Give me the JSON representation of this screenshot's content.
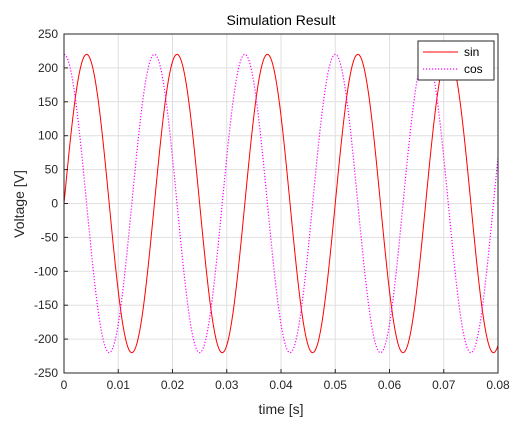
{
  "chart_data": {
    "type": "line",
    "title": "Simulation Result",
    "xlabel": "time [s]",
    "ylabel": "Voltage [V]",
    "xlim": [
      0,
      0.08
    ],
    "ylim": [
      -250,
      250
    ],
    "xticks": [
      0,
      0.01,
      0.02,
      0.03,
      0.04,
      0.05,
      0.06,
      0.07,
      0.08
    ],
    "xtick_labels": [
      "0",
      "0.01",
      "0.02",
      "0.03",
      "0.04",
      "0.05",
      "0.06",
      "0.07",
      "0.08"
    ],
    "yticks": [
      -250,
      -200,
      -150,
      -100,
      -50,
      0,
      50,
      100,
      150,
      200,
      250
    ],
    "ytick_labels": [
      "-250",
      "-200",
      "-150",
      "-100",
      "-50",
      "0",
      "50",
      "100",
      "150",
      "200",
      "250"
    ],
    "grid": true,
    "legend_position": "top-right",
    "series": [
      {
        "name": "sin",
        "function": "sin",
        "amplitude": 220,
        "frequency_hz": 60,
        "color": "#ff0000",
        "style": "solid"
      },
      {
        "name": "cos",
        "function": "cos",
        "amplitude": 220,
        "frequency_hz": 60,
        "color": "#ff00ff",
        "style": "dotted"
      }
    ]
  }
}
